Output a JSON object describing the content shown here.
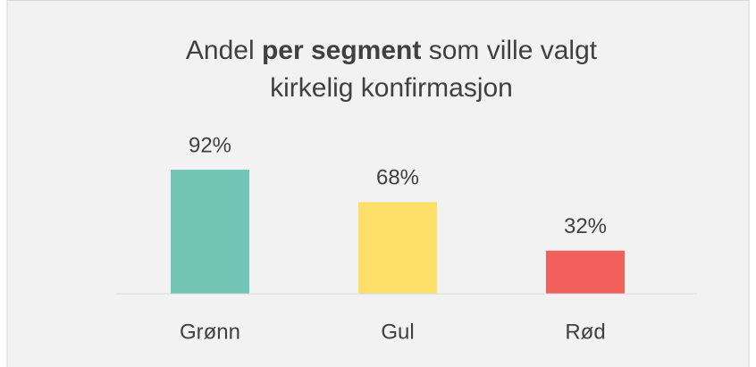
{
  "chart_data": {
    "type": "bar",
    "title_lines": [
      [
        {
          "text": "Andel"
        },
        {
          "text": "per segment",
          "bold": true
        },
        {
          "text": "som ville valgt"
        }
      ],
      [
        {
          "text": "kirkelig konfirmasjon"
        }
      ]
    ],
    "categories": [
      "Grønn",
      "Gul",
      "Rød"
    ],
    "values": [
      92,
      68,
      32
    ],
    "value_labels": [
      "92%",
      "68%",
      "32%"
    ],
    "colors": [
      "#72c4b4",
      "#fde06a",
      "#f2605c"
    ],
    "ylim": [
      0,
      100
    ]
  }
}
